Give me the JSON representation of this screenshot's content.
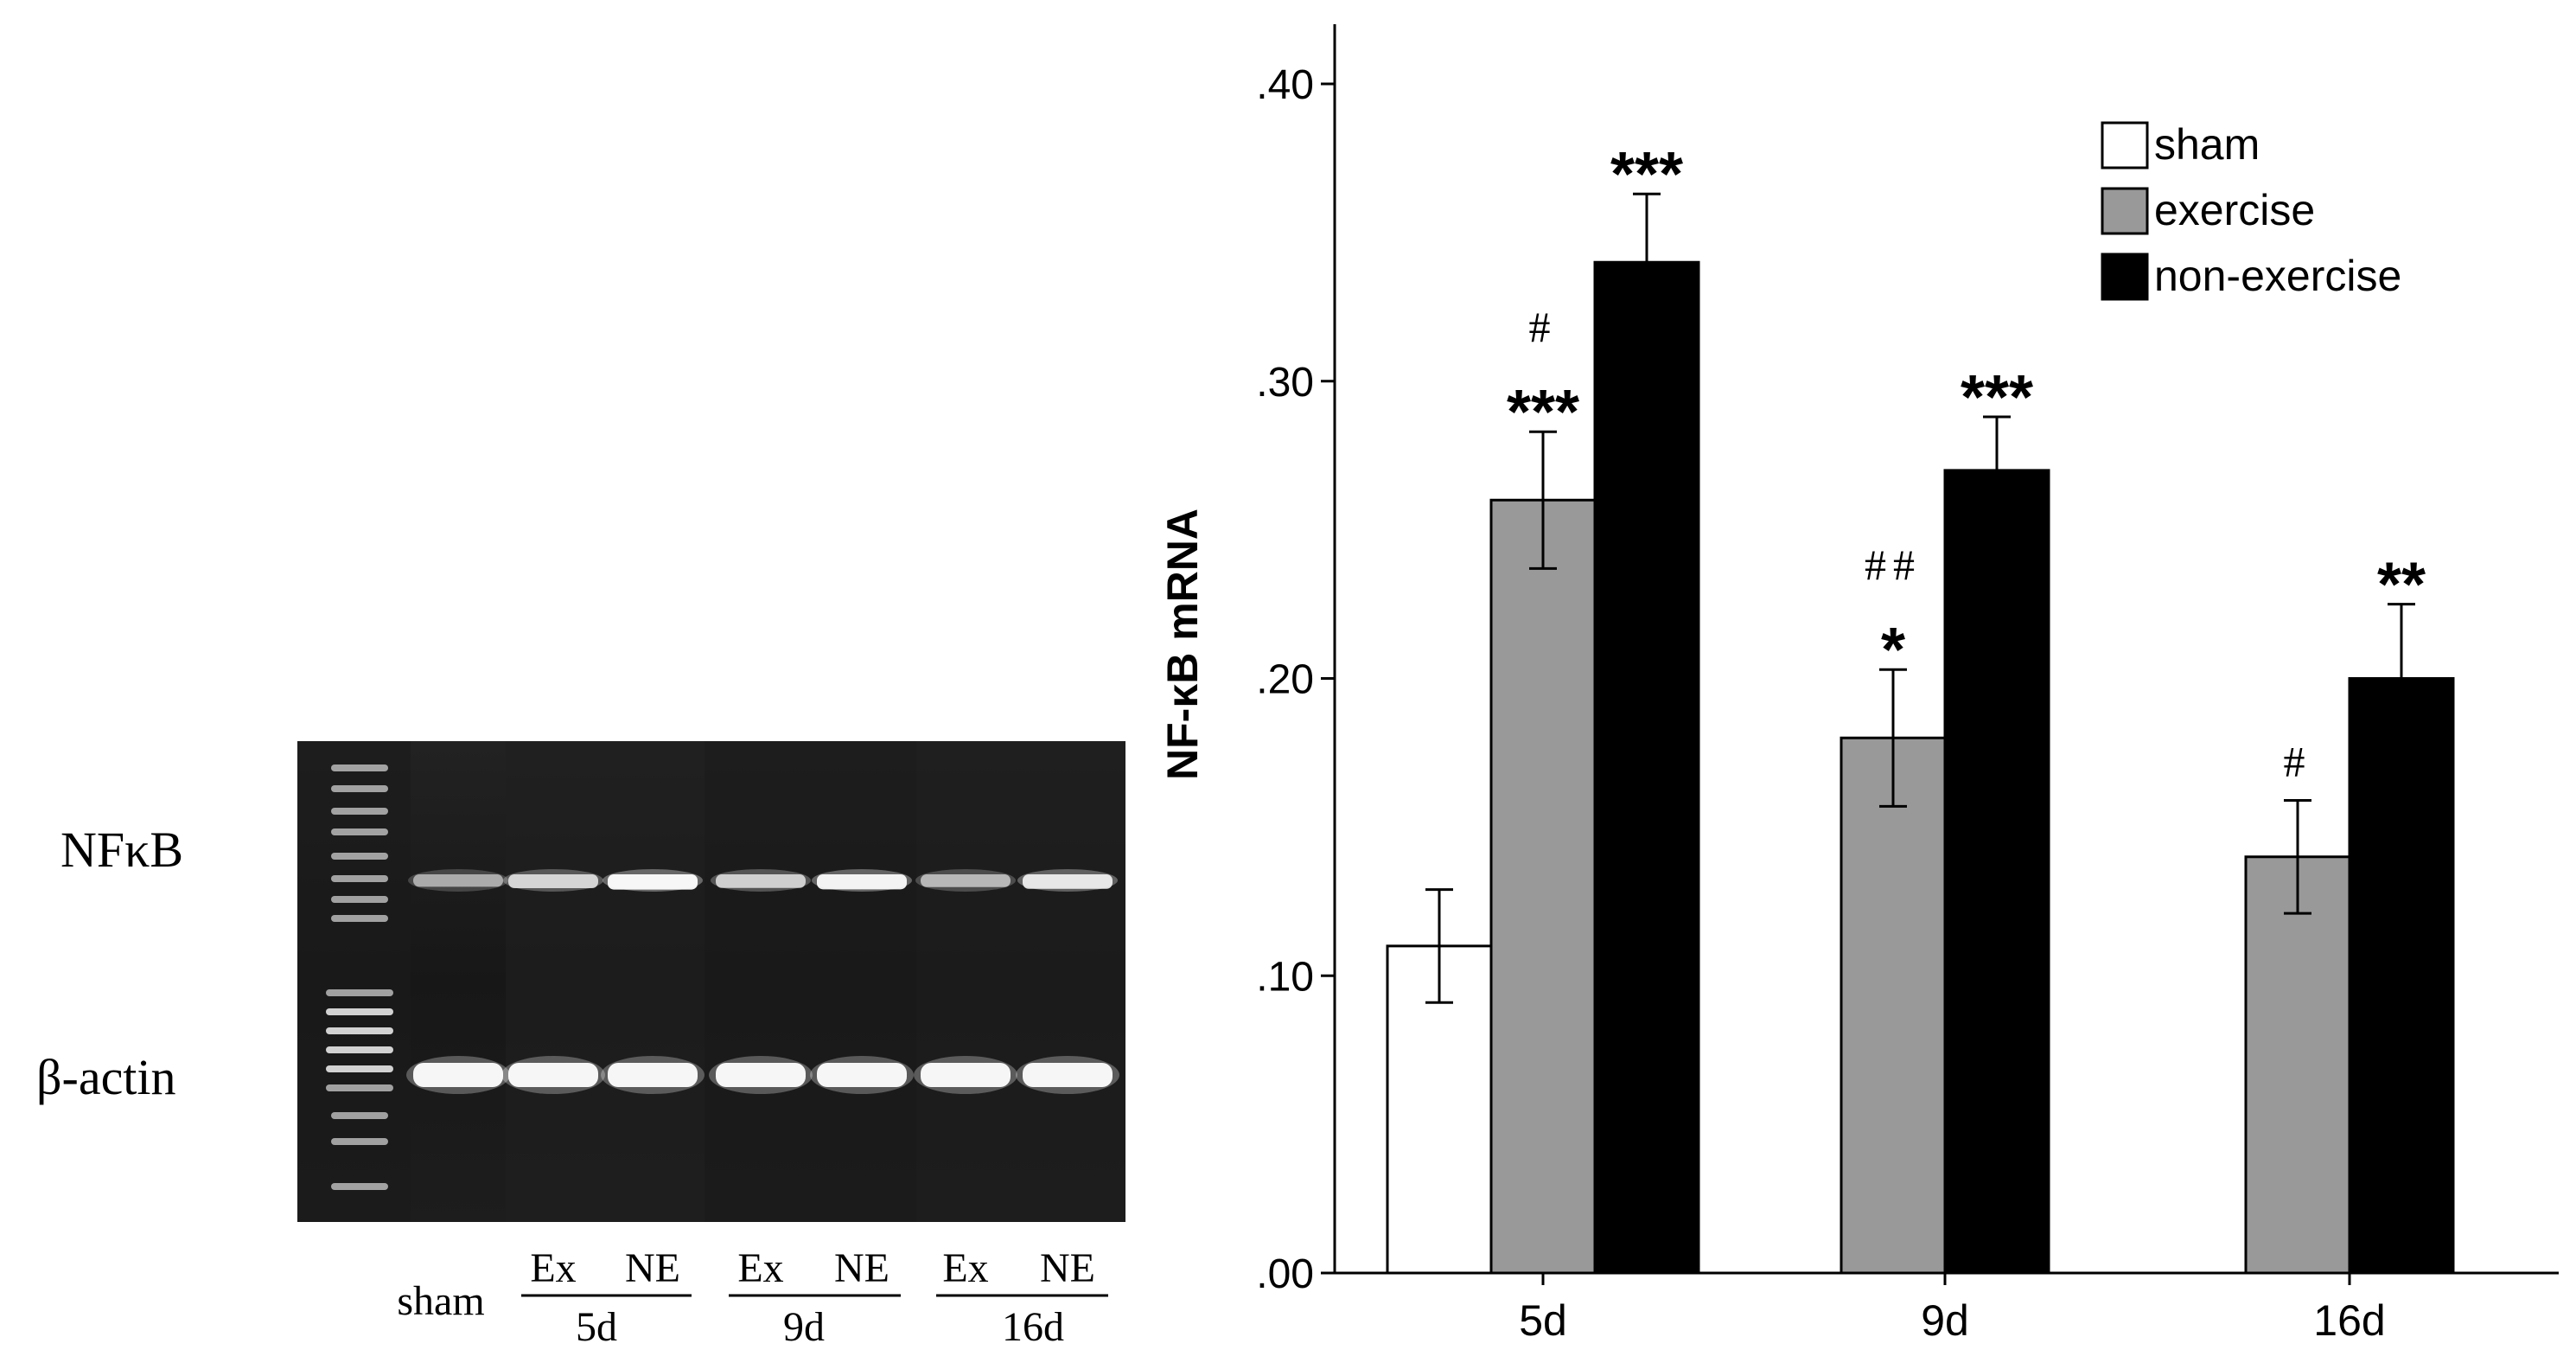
{
  "gel": {
    "row_labels": [
      "NFκB",
      "β-actin"
    ],
    "lane_labels": [
      "sham",
      "Ex",
      "NE",
      "Ex",
      "NE",
      "Ex",
      "NE"
    ],
    "group_labels": [
      "5d",
      "9d",
      "16d"
    ],
    "band_intensity": {
      "NFkB": [
        0.55,
        0.75,
        0.95,
        0.72,
        0.92,
        0.6,
        0.85
      ],
      "beta_actin": [
        0.95,
        0.95,
        0.95,
        0.95,
        0.95,
        0.95,
        0.95
      ]
    }
  },
  "chart_data": {
    "type": "bar",
    "title": "",
    "xlabel": "",
    "ylabel": "NF-κB mRNA",
    "ylim": [
      0,
      0.4
    ],
    "yticks": [
      0,
      0.1,
      0.2,
      0.3,
      0.4
    ],
    "ytick_labels": [
      ".00",
      ".10",
      ".20",
      ".30",
      ".40"
    ],
    "categories": [
      "5d",
      "9d",
      "16d"
    ],
    "series": [
      {
        "name": "sham",
        "color": "#ffffff",
        "values": [
          0.11,
          null,
          null
        ],
        "errors": [
          0.019,
          null,
          null
        ]
      },
      {
        "name": "exercise",
        "color": "#999999",
        "values": [
          0.26,
          0.18,
          0.14
        ],
        "errors": [
          0.023,
          0.023,
          0.019
        ]
      },
      {
        "name": "non-exercise",
        "color": "#000000",
        "values": [
          0.34,
          0.27,
          0.2
        ],
        "errors": [
          0.023,
          0.018,
          0.025
        ]
      }
    ],
    "annotations": [
      {
        "category": 0,
        "series": 1,
        "lines": [
          "#",
          "***"
        ]
      },
      {
        "category": 0,
        "series": 2,
        "lines": [
          "***"
        ]
      },
      {
        "category": 1,
        "series": 1,
        "lines": [
          "##",
          "*"
        ]
      },
      {
        "category": 1,
        "series": 2,
        "lines": [
          "***"
        ]
      },
      {
        "category": 2,
        "series": 1,
        "lines": [
          "#"
        ]
      },
      {
        "category": 2,
        "series": 2,
        "lines": [
          "**"
        ]
      }
    ],
    "legend": {
      "position": "top-right",
      "entries": [
        "sham",
        "exercise",
        "non-exercise"
      ]
    },
    "grid": false
  }
}
